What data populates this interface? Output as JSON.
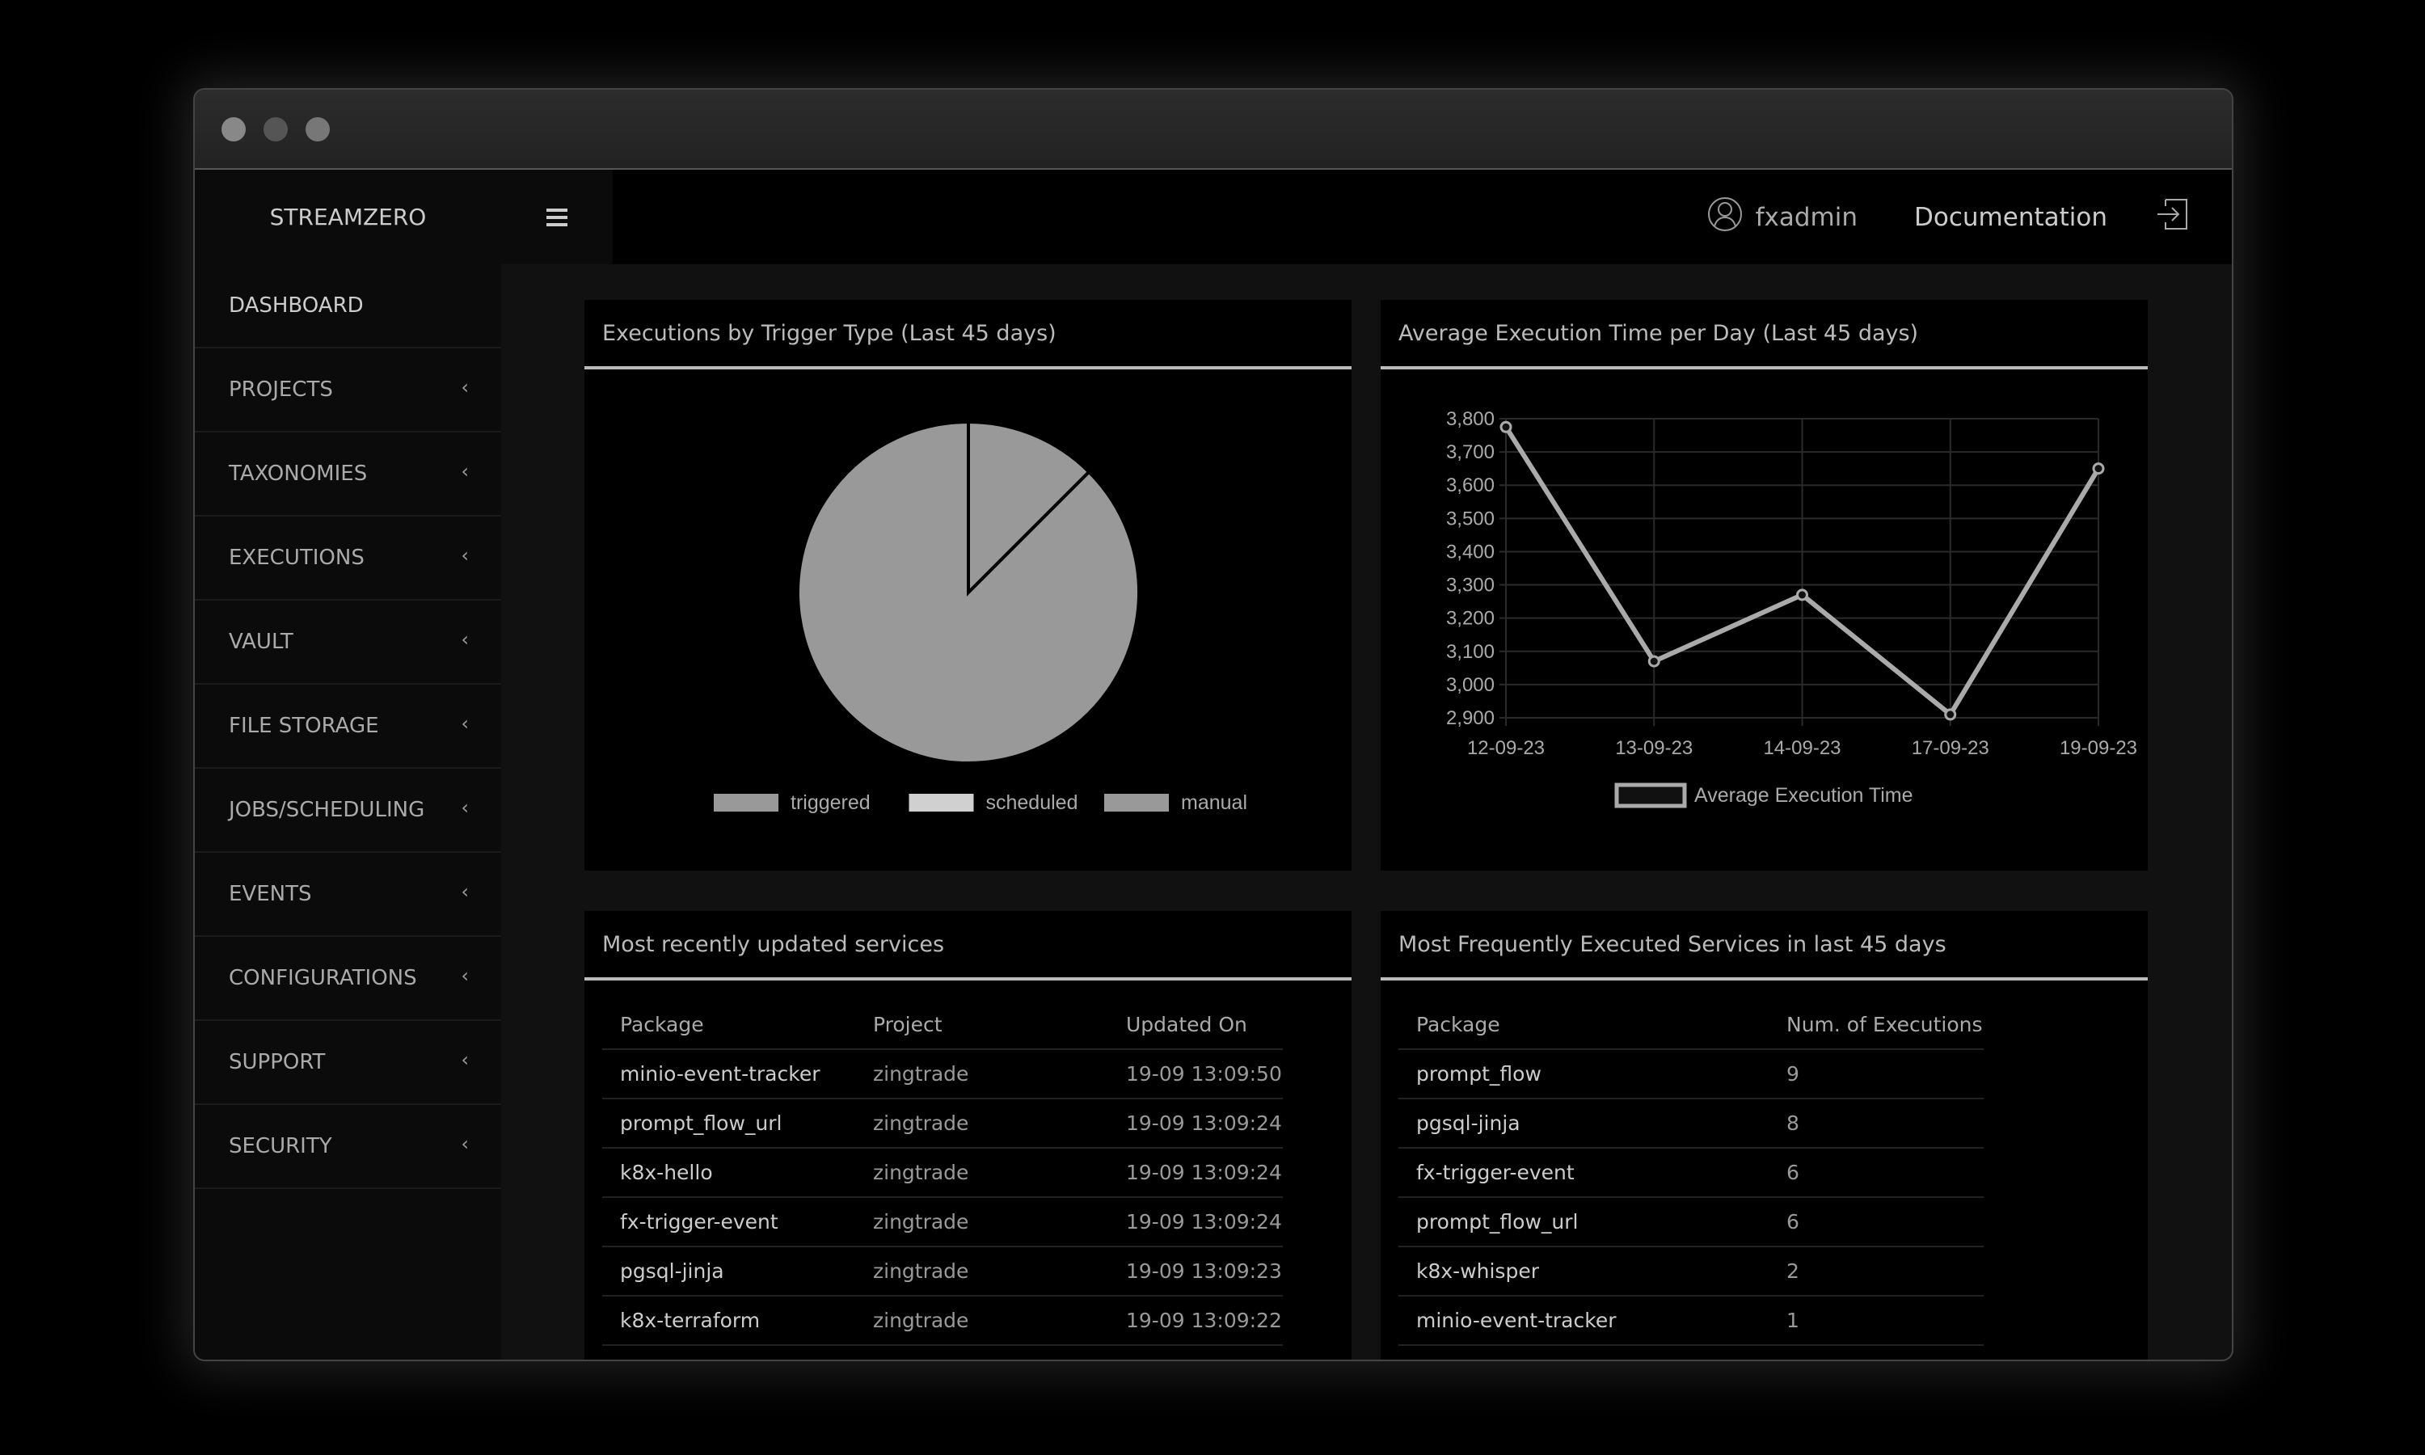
{
  "window": {
    "controls": [
      "close",
      "minimize",
      "maximize"
    ]
  },
  "header": {
    "brand": "STREAMZERO",
    "menu_icon": "hamburger-icon",
    "user": "fxadmin",
    "user_icon": "user-icon",
    "documentation": "Documentation",
    "logout_icon": "logout-icon"
  },
  "sidebar": {
    "items": [
      {
        "label": "DASHBOARD",
        "active": true
      },
      {
        "label": "PROJECTS",
        "chevron": "‹"
      },
      {
        "label": "TAXONOMIES",
        "chevron": "‹"
      },
      {
        "label": "EXECUTIONS",
        "chevron": "‹"
      },
      {
        "label": "VAULT",
        "chevron": "‹"
      },
      {
        "label": "FILE STORAGE",
        "chevron": "‹"
      },
      {
        "label": "JOBS/SCHEDULING",
        "chevron": "‹"
      },
      {
        "label": "EVENTS",
        "chevron": "‹"
      },
      {
        "label": "CONFIGURATIONS",
        "chevron": "‹"
      },
      {
        "label": "SUPPORT",
        "chevron": "‹"
      },
      {
        "label": "SECURITY",
        "chevron": "‹"
      }
    ]
  },
  "cards": {
    "pie_title": "Executions by Trigger Type (Last 45 days)",
    "line_title": "Average Execution Time per Day (Last 45 days)",
    "recent_title": "Most recently updated services",
    "frequent_title": "Most Frequently Executed Services in last 45 days"
  },
  "chart_data": [
    {
      "type": "pie",
      "categories": [
        "triggered",
        "scheduled",
        "manual"
      ],
      "values": [
        12.5,
        0,
        87.5
      ],
      "value_unit": "percent of executions (estimated)",
      "colors": [
        "#999999",
        "#d0d0d0",
        "#999999"
      ],
      "legend": "bottom"
    },
    {
      "type": "line",
      "categories": [
        "12-09-23",
        "13-09-23",
        "14-09-23",
        "17-09-23",
        "19-09-23"
      ],
      "series": [
        {
          "name": "Average Execution Time",
          "values": [
            3775,
            3070,
            3270,
            2910,
            3650
          ]
        }
      ],
      "yticks": [
        "3,800",
        "3,700",
        "3,600",
        "3,500",
        "3,400",
        "3,300",
        "3,200",
        "3,100",
        "3,000",
        "2,900"
      ],
      "ylim": [
        2900,
        3800
      ],
      "grid": true,
      "legend": "bottom",
      "color": "#aaaaaa"
    }
  ],
  "recent": {
    "columns": [
      "Package",
      "Project",
      "Updated On"
    ],
    "rows": [
      [
        "minio-event-tracker",
        "zingtrade",
        "19-09 13:09:50"
      ],
      [
        "prompt_flow_url",
        "zingtrade",
        "19-09 13:09:24"
      ],
      [
        "k8x-hello",
        "zingtrade",
        "19-09 13:09:24"
      ],
      [
        "fx-trigger-event",
        "zingtrade",
        "19-09 13:09:24"
      ],
      [
        "pgsql-jinja",
        "zingtrade",
        "19-09 13:09:23"
      ],
      [
        "k8x-terraform",
        "zingtrade",
        "19-09 13:09:22"
      ]
    ]
  },
  "frequent": {
    "columns": [
      "Package",
      "Num. of Executions"
    ],
    "rows": [
      [
        "prompt_flow",
        "9"
      ],
      [
        "pgsql-jinja",
        "8"
      ],
      [
        "fx-trigger-event",
        "6"
      ],
      [
        "prompt_flow_url",
        "6"
      ],
      [
        "k8x-whisper",
        "2"
      ],
      [
        "minio-event-tracker",
        "1"
      ]
    ]
  }
}
